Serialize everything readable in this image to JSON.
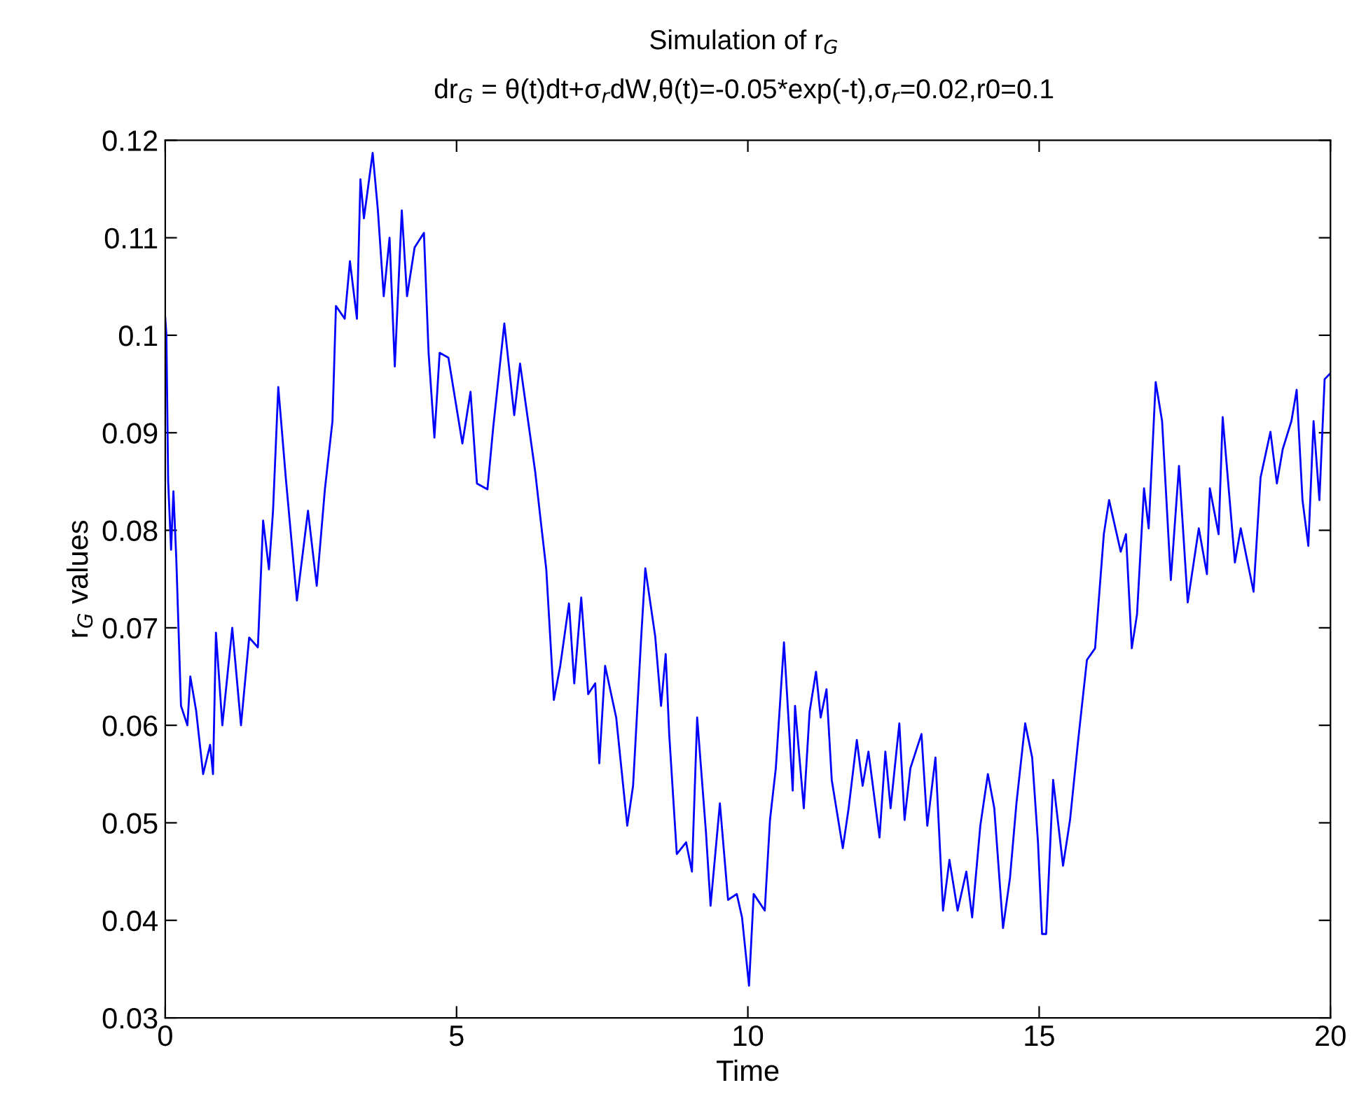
{
  "chart_data": {
    "type": "line",
    "title": "Simulation of r$_{G}$",
    "subtitle": "dr$_{G}$ = θ(t)dt+σ$_{r}$dW,θ(t)=-0.05*exp(-t),σ$_{r}$=0.02,r0=0.1",
    "xlabel": "Time",
    "ylabel": "r$_{G}$ values",
    "xlim": [
      0,
      20
    ],
    "xticks": [
      0,
      5,
      10,
      15,
      20
    ],
    "ylim": [
      0.03,
      0.12
    ],
    "yticks": [
      0.03,
      0.04,
      0.05,
      0.06,
      0.07,
      0.08,
      0.09,
      0.1,
      0.11,
      0.12
    ],
    "grid": false,
    "legend": false,
    "marker": "none",
    "line_style": "solid",
    "series": [
      {
        "color": "#0000ff",
        "x": [
          0,
          0.02,
          0.05,
          0.1,
          0.14,
          0.19,
          0.27,
          0.38,
          0.43,
          0.53,
          0.65,
          0.77,
          0.82,
          0.87,
          0.98,
          1.15,
          1.3,
          1.44,
          1.59,
          1.68,
          1.78,
          1.85,
          1.94,
          2.07,
          2.26,
          2.45,
          2.6,
          2.74,
          2.87,
          2.93,
          3.08,
          3.17,
          3.29,
          3.35,
          3.41,
          3.56,
          3.65,
          3.75,
          3.85,
          3.94,
          4.06,
          4.15,
          4.28,
          4.44,
          4.52,
          4.62,
          4.71,
          4.86,
          5.1,
          5.24,
          5.35,
          5.53,
          5.63,
          5.82,
          5.99,
          6.09,
          6.2,
          6.35,
          6.45,
          6.54,
          6.67,
          6.78,
          6.93,
          7.02,
          7.14,
          7.26,
          7.38,
          7.45,
          7.55,
          7.74,
          7.93,
          8.03,
          8.17,
          8.24,
          8.41,
          8.51,
          8.59,
          8.65,
          8.78,
          8.94,
          9.04,
          9.13,
          9.28,
          9.36,
          9.52,
          9.66,
          9.81,
          9.9,
          10.02,
          10.1,
          10.29,
          10.38,
          10.48,
          10.62,
          10.77,
          10.81,
          10.96,
          11.06,
          11.17,
          11.25,
          11.35,
          11.44,
          11.63,
          11.73,
          11.87,
          11.97,
          12.07,
          12.26,
          12.36,
          12.45,
          12.6,
          12.69,
          12.79,
          12.98,
          13.08,
          13.22,
          13.35,
          13.46,
          13.6,
          13.75,
          13.85,
          13.99,
          14.12,
          14.23,
          14.38,
          14.5,
          14.61,
          14.76,
          14.88,
          14.98,
          15.05,
          15.12,
          15.24,
          15.41,
          15.53,
          15.67,
          15.82,
          15.96,
          16.11,
          16.2,
          16.4,
          16.49,
          16.59,
          16.68,
          16.8,
          16.88,
          17.0,
          17.11,
          17.26,
          17.4,
          17.55,
          17.74,
          17.88,
          17.93,
          18.08,
          18.15,
          18.27,
          18.36,
          18.46,
          18.68,
          18.8,
          18.97,
          19.08,
          19.18,
          19.33,
          19.42,
          19.52,
          19.62,
          19.71,
          19.81,
          19.9,
          20.0
        ],
        "values": [
          0.1018,
          0.1,
          0.085,
          0.078,
          0.084,
          0.077,
          0.062,
          0.06,
          0.065,
          0.0615,
          0.055,
          0.058,
          0.055,
          0.0695,
          0.06,
          0.07,
          0.06,
          0.069,
          0.068,
          0.081,
          0.076,
          0.082,
          0.0947,
          0.0853,
          0.0728,
          0.082,
          0.0743,
          0.0842,
          0.0912,
          0.103,
          0.1017,
          0.1076,
          0.1017,
          0.116,
          0.112,
          0.1187,
          0.1128,
          0.104,
          0.11,
          0.0968,
          0.1128,
          0.104,
          0.109,
          0.1105,
          0.0982,
          0.0895,
          0.0982,
          0.0977,
          0.0889,
          0.0942,
          0.0848,
          0.0842,
          0.0906,
          0.1012,
          0.0918,
          0.0971,
          0.0924,
          0.086,
          0.0807,
          0.076,
          0.0626,
          0.0661,
          0.0725,
          0.0643,
          0.0731,
          0.0632,
          0.0643,
          0.0561,
          0.0661,
          0.0608,
          0.0497,
          0.0538,
          0.0691,
          0.0761,
          0.0691,
          0.062,
          0.0673,
          0.0591,
          0.0468,
          0.048,
          0.045,
          0.0608,
          0.0491,
          0.0415,
          0.052,
          0.0421,
          0.0427,
          0.0403,
          0.0333,
          0.0427,
          0.041,
          0.0503,
          0.0556,
          0.0685,
          0.0533,
          0.062,
          0.0515,
          0.0614,
          0.0655,
          0.0608,
          0.0637,
          0.0544,
          0.0474,
          0.0515,
          0.0585,
          0.0538,
          0.0573,
          0.0485,
          0.0573,
          0.0515,
          0.0602,
          0.0503,
          0.0556,
          0.0591,
          0.0497,
          0.0567,
          0.041,
          0.0462,
          0.041,
          0.045,
          0.0403,
          0.0497,
          0.055,
          0.0515,
          0.0392,
          0.0444,
          0.052,
          0.0602,
          0.0567,
          0.048,
          0.0386,
          0.0386,
          0.0544,
          0.0456,
          0.0503,
          0.0585,
          0.0667,
          0.0679,
          0.0796,
          0.0831,
          0.0778,
          0.0796,
          0.0679,
          0.0714,
          0.0843,
          0.0802,
          0.0952,
          0.0912,
          0.0749,
          0.0866,
          0.0726,
          0.0802,
          0.0755,
          0.0843,
          0.0796,
          0.0916,
          0.0831,
          0.0767,
          0.0802,
          0.0737,
          0.0854,
          0.0901,
          0.0848,
          0.0883,
          0.0912,
          0.0944,
          0.0831,
          0.0784,
          0.0912,
          0.0831,
          0.0955,
          0.0961
        ]
      }
    ]
  }
}
